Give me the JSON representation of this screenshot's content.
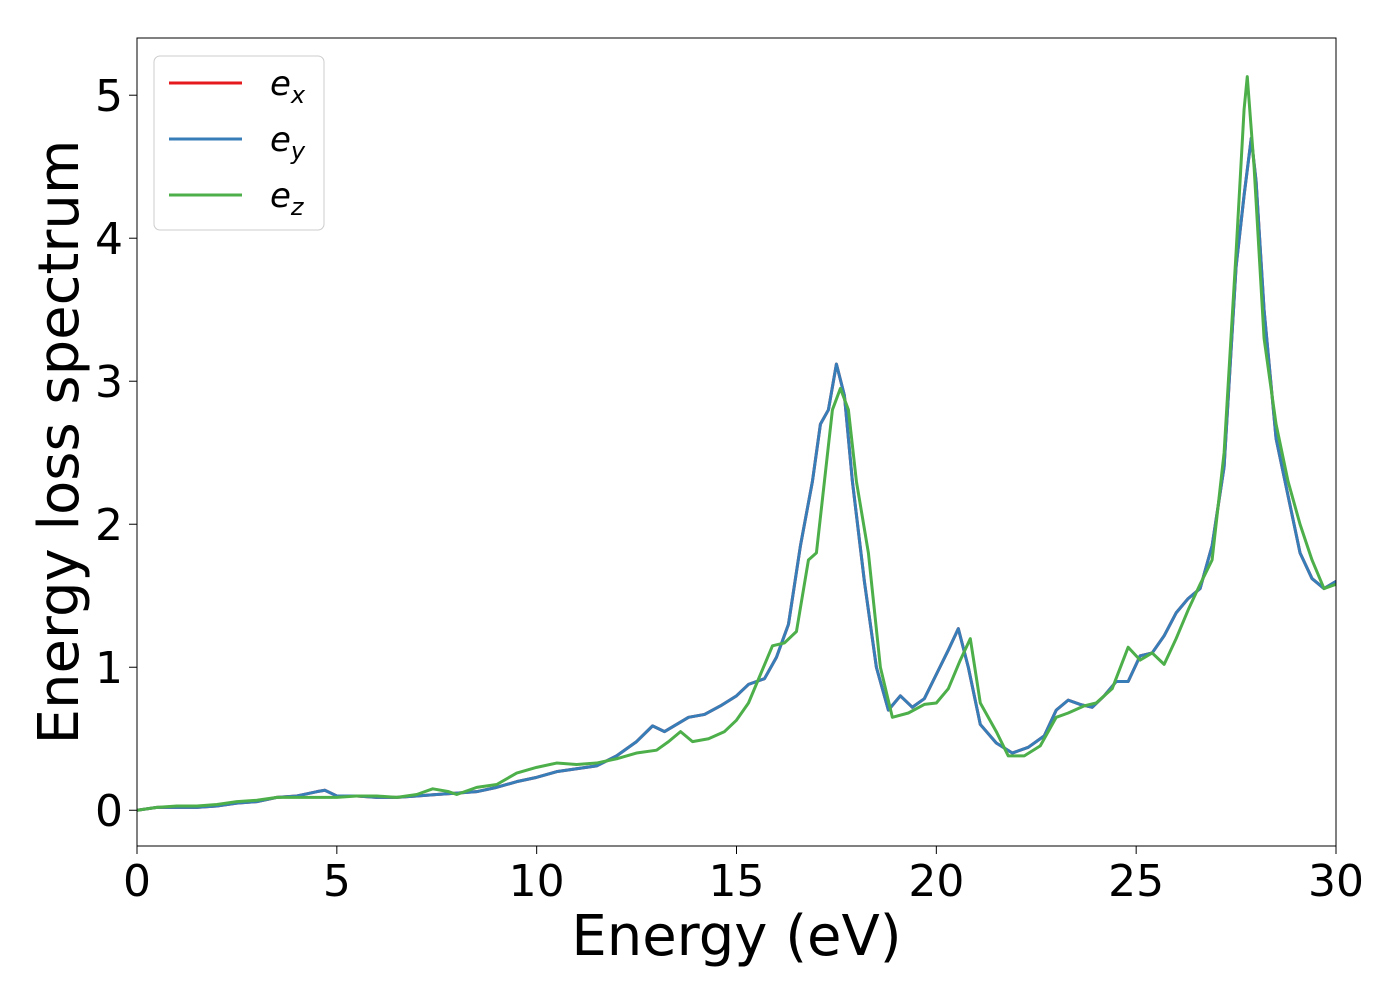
{
  "chart_data": {
    "type": "line",
    "title": "",
    "xlabel": "Energy (eV)",
    "ylabel": "Energy loss spectrum",
    "xlim": [
      0,
      30
    ],
    "ylim": [
      -0.25,
      5.4
    ],
    "xticks": [
      0,
      5,
      10,
      15,
      20,
      25,
      30
    ],
    "yticks": [
      0,
      1,
      2,
      3,
      4,
      5
    ],
    "grid": false,
    "legend_position": "upper-left",
    "series": [
      {
        "name": "e",
        "subscript": "x",
        "color": "#e41a1c",
        "points": [
          [
            0,
            0.0
          ],
          [
            0.5,
            0.02
          ],
          [
            1.0,
            0.02
          ],
          [
            1.5,
            0.02
          ],
          [
            2.0,
            0.03
          ],
          [
            2.5,
            0.05
          ],
          [
            3.0,
            0.06
          ],
          [
            3.5,
            0.09
          ],
          [
            4.0,
            0.1
          ],
          [
            4.5,
            0.13
          ],
          [
            4.7,
            0.14
          ],
          [
            5.0,
            0.1
          ],
          [
            5.5,
            0.1
          ],
          [
            6.0,
            0.09
          ],
          [
            6.5,
            0.09
          ],
          [
            7.0,
            0.1
          ],
          [
            7.5,
            0.11
          ],
          [
            8.0,
            0.12
          ],
          [
            8.5,
            0.13
          ],
          [
            9.0,
            0.16
          ],
          [
            9.5,
            0.2
          ],
          [
            10.0,
            0.23
          ],
          [
            10.5,
            0.27
          ],
          [
            11.0,
            0.29
          ],
          [
            11.5,
            0.31
          ],
          [
            12.0,
            0.38
          ],
          [
            12.5,
            0.48
          ],
          [
            12.9,
            0.59
          ],
          [
            13.2,
            0.55
          ],
          [
            13.5,
            0.6
          ],
          [
            13.8,
            0.65
          ],
          [
            14.2,
            0.67
          ],
          [
            14.6,
            0.73
          ],
          [
            15.0,
            0.8
          ],
          [
            15.3,
            0.88
          ],
          [
            15.7,
            0.92
          ],
          [
            16.0,
            1.07
          ],
          [
            16.3,
            1.3
          ],
          [
            16.6,
            1.85
          ],
          [
            16.9,
            2.3
          ],
          [
            17.1,
            2.7
          ],
          [
            17.3,
            2.8
          ],
          [
            17.5,
            3.12
          ],
          [
            17.7,
            2.9
          ],
          [
            17.9,
            2.3
          ],
          [
            18.2,
            1.6
          ],
          [
            18.5,
            1.0
          ],
          [
            18.8,
            0.7
          ],
          [
            19.1,
            0.8
          ],
          [
            19.4,
            0.72
          ],
          [
            19.7,
            0.78
          ],
          [
            20.0,
            0.95
          ],
          [
            20.3,
            1.12
          ],
          [
            20.55,
            1.27
          ],
          [
            20.8,
            1.0
          ],
          [
            21.1,
            0.6
          ],
          [
            21.5,
            0.47
          ],
          [
            21.9,
            0.4
          ],
          [
            22.3,
            0.44
          ],
          [
            22.7,
            0.52
          ],
          [
            23.0,
            0.7
          ],
          [
            23.3,
            0.77
          ],
          [
            23.6,
            0.74
          ],
          [
            23.9,
            0.72
          ],
          [
            24.2,
            0.8
          ],
          [
            24.5,
            0.9
          ],
          [
            24.8,
            0.9
          ],
          [
            25.1,
            1.08
          ],
          [
            25.4,
            1.1
          ],
          [
            25.7,
            1.22
          ],
          [
            26.0,
            1.38
          ],
          [
            26.3,
            1.48
          ],
          [
            26.6,
            1.55
          ],
          [
            26.9,
            1.85
          ],
          [
            27.2,
            2.4
          ],
          [
            27.5,
            3.8
          ],
          [
            27.7,
            4.3
          ],
          [
            27.88,
            4.7
          ],
          [
            28.0,
            4.4
          ],
          [
            28.2,
            3.5
          ],
          [
            28.5,
            2.6
          ],
          [
            28.8,
            2.2
          ],
          [
            29.1,
            1.8
          ],
          [
            29.4,
            1.62
          ],
          [
            29.7,
            1.55
          ],
          [
            30.0,
            1.6
          ]
        ]
      },
      {
        "name": "e",
        "subscript": "y",
        "color": "#377eb8",
        "points": [
          [
            0,
            0.0
          ],
          [
            0.5,
            0.02
          ],
          [
            1.0,
            0.02
          ],
          [
            1.5,
            0.02
          ],
          [
            2.0,
            0.03
          ],
          [
            2.5,
            0.05
          ],
          [
            3.0,
            0.06
          ],
          [
            3.5,
            0.09
          ],
          [
            4.0,
            0.1
          ],
          [
            4.5,
            0.13
          ],
          [
            4.7,
            0.14
          ],
          [
            5.0,
            0.1
          ],
          [
            5.5,
            0.1
          ],
          [
            6.0,
            0.09
          ],
          [
            6.5,
            0.09
          ],
          [
            7.0,
            0.1
          ],
          [
            7.5,
            0.11
          ],
          [
            8.0,
            0.12
          ],
          [
            8.5,
            0.13
          ],
          [
            9.0,
            0.16
          ],
          [
            9.5,
            0.2
          ],
          [
            10.0,
            0.23
          ],
          [
            10.5,
            0.27
          ],
          [
            11.0,
            0.29
          ],
          [
            11.5,
            0.31
          ],
          [
            12.0,
            0.38
          ],
          [
            12.5,
            0.48
          ],
          [
            12.9,
            0.59
          ],
          [
            13.2,
            0.55
          ],
          [
            13.5,
            0.6
          ],
          [
            13.8,
            0.65
          ],
          [
            14.2,
            0.67
          ],
          [
            14.6,
            0.73
          ],
          [
            15.0,
            0.8
          ],
          [
            15.3,
            0.88
          ],
          [
            15.7,
            0.92
          ],
          [
            16.0,
            1.07
          ],
          [
            16.3,
            1.3
          ],
          [
            16.6,
            1.85
          ],
          [
            16.9,
            2.3
          ],
          [
            17.1,
            2.7
          ],
          [
            17.3,
            2.8
          ],
          [
            17.5,
            3.12
          ],
          [
            17.7,
            2.9
          ],
          [
            17.9,
            2.3
          ],
          [
            18.2,
            1.6
          ],
          [
            18.5,
            1.0
          ],
          [
            18.8,
            0.7
          ],
          [
            19.1,
            0.8
          ],
          [
            19.4,
            0.72
          ],
          [
            19.7,
            0.78
          ],
          [
            20.0,
            0.95
          ],
          [
            20.3,
            1.12
          ],
          [
            20.55,
            1.27
          ],
          [
            20.8,
            1.0
          ],
          [
            21.1,
            0.6
          ],
          [
            21.5,
            0.47
          ],
          [
            21.9,
            0.4
          ],
          [
            22.3,
            0.44
          ],
          [
            22.7,
            0.52
          ],
          [
            23.0,
            0.7
          ],
          [
            23.3,
            0.77
          ],
          [
            23.6,
            0.74
          ],
          [
            23.9,
            0.72
          ],
          [
            24.2,
            0.8
          ],
          [
            24.5,
            0.9
          ],
          [
            24.8,
            0.9
          ],
          [
            25.1,
            1.08
          ],
          [
            25.4,
            1.1
          ],
          [
            25.7,
            1.22
          ],
          [
            26.0,
            1.38
          ],
          [
            26.3,
            1.48
          ],
          [
            26.6,
            1.55
          ],
          [
            26.9,
            1.85
          ],
          [
            27.2,
            2.4
          ],
          [
            27.5,
            3.8
          ],
          [
            27.7,
            4.3
          ],
          [
            27.88,
            4.7
          ],
          [
            28.0,
            4.4
          ],
          [
            28.2,
            3.5
          ],
          [
            28.5,
            2.6
          ],
          [
            28.8,
            2.2
          ],
          [
            29.1,
            1.8
          ],
          [
            29.4,
            1.62
          ],
          [
            29.7,
            1.55
          ],
          [
            30.0,
            1.6
          ]
        ]
      },
      {
        "name": "e",
        "subscript": "z",
        "color": "#4daf4a",
        "points": [
          [
            0,
            0.0
          ],
          [
            0.5,
            0.02
          ],
          [
            1.0,
            0.03
          ],
          [
            1.5,
            0.03
          ],
          [
            2.0,
            0.04
          ],
          [
            2.5,
            0.06
          ],
          [
            3.0,
            0.07
          ],
          [
            3.5,
            0.09
          ],
          [
            4.0,
            0.09
          ],
          [
            4.5,
            0.09
          ],
          [
            5.0,
            0.09
          ],
          [
            5.5,
            0.1
          ],
          [
            6.0,
            0.1
          ],
          [
            6.5,
            0.09
          ],
          [
            7.0,
            0.11
          ],
          [
            7.4,
            0.15
          ],
          [
            7.8,
            0.13
          ],
          [
            8.0,
            0.11
          ],
          [
            8.5,
            0.16
          ],
          [
            9.0,
            0.18
          ],
          [
            9.5,
            0.26
          ],
          [
            10.0,
            0.3
          ],
          [
            10.5,
            0.33
          ],
          [
            11.0,
            0.32
          ],
          [
            11.5,
            0.33
          ],
          [
            12.0,
            0.36
          ],
          [
            12.5,
            0.4
          ],
          [
            13.0,
            0.42
          ],
          [
            13.3,
            0.48
          ],
          [
            13.6,
            0.55
          ],
          [
            13.9,
            0.48
          ],
          [
            14.3,
            0.5
          ],
          [
            14.7,
            0.55
          ],
          [
            15.0,
            0.63
          ],
          [
            15.3,
            0.75
          ],
          [
            15.6,
            0.95
          ],
          [
            15.9,
            1.15
          ],
          [
            16.2,
            1.17
          ],
          [
            16.5,
            1.25
          ],
          [
            16.8,
            1.75
          ],
          [
            17.0,
            1.8
          ],
          [
            17.2,
            2.3
          ],
          [
            17.4,
            2.8
          ],
          [
            17.6,
            2.95
          ],
          [
            17.8,
            2.8
          ],
          [
            18.0,
            2.3
          ],
          [
            18.3,
            1.8
          ],
          [
            18.6,
            1.0
          ],
          [
            18.9,
            0.65
          ],
          [
            19.3,
            0.68
          ],
          [
            19.7,
            0.74
          ],
          [
            20.0,
            0.75
          ],
          [
            20.3,
            0.85
          ],
          [
            20.6,
            1.05
          ],
          [
            20.85,
            1.2
          ],
          [
            21.1,
            0.75
          ],
          [
            21.5,
            0.55
          ],
          [
            21.8,
            0.38
          ],
          [
            22.2,
            0.38
          ],
          [
            22.6,
            0.45
          ],
          [
            23.0,
            0.65
          ],
          [
            23.3,
            0.68
          ],
          [
            23.7,
            0.73
          ],
          [
            24.0,
            0.75
          ],
          [
            24.4,
            0.85
          ],
          [
            24.8,
            1.14
          ],
          [
            25.1,
            1.05
          ],
          [
            25.4,
            1.1
          ],
          [
            25.7,
            1.02
          ],
          [
            26.0,
            1.2
          ],
          [
            26.3,
            1.4
          ],
          [
            26.6,
            1.58
          ],
          [
            26.9,
            1.75
          ],
          [
            27.2,
            2.5
          ],
          [
            27.5,
            3.9
          ],
          [
            27.7,
            4.9
          ],
          [
            27.78,
            5.13
          ],
          [
            27.95,
            4.5
          ],
          [
            28.2,
            3.3
          ],
          [
            28.5,
            2.7
          ],
          [
            28.8,
            2.3
          ],
          [
            29.1,
            2.0
          ],
          [
            29.4,
            1.75
          ],
          [
            29.7,
            1.55
          ],
          [
            30.0,
            1.58
          ]
        ]
      }
    ]
  }
}
